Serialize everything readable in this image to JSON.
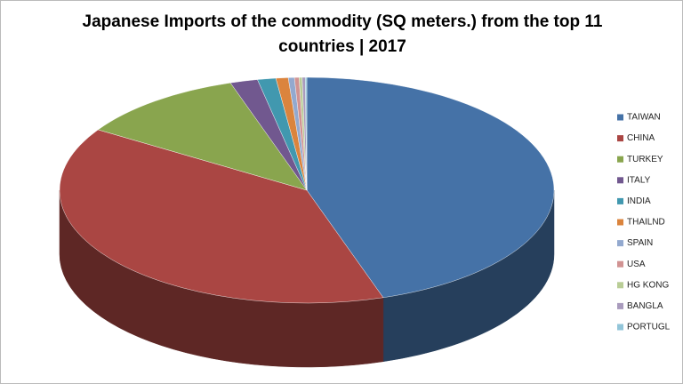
{
  "chart_data": {
    "type": "pie3d",
    "title": "Japanese Imports of the commodity (SQ meters.) from the top 11 countries | 2017",
    "categories": [
      "TAIWAN",
      "CHINA",
      "TURKEY",
      "ITALY",
      "INDIA",
      "THAILND",
      "SPAIN",
      "USA",
      "HG KONG",
      "BANGLA",
      "PORTUGL"
    ],
    "values": [
      45,
      39,
      11,
      1.8,
      1.2,
      0.8,
      0.4,
      0.3,
      0.2,
      0.2,
      0.1
    ],
    "colors": [
      "#4572a7",
      "#aa4643",
      "#89a54e",
      "#71588f",
      "#4198af",
      "#db843d",
      "#93a9cf",
      "#d19392",
      "#b9cd96",
      "#a99bbd",
      "#92c5d9"
    ],
    "legend": "right"
  }
}
